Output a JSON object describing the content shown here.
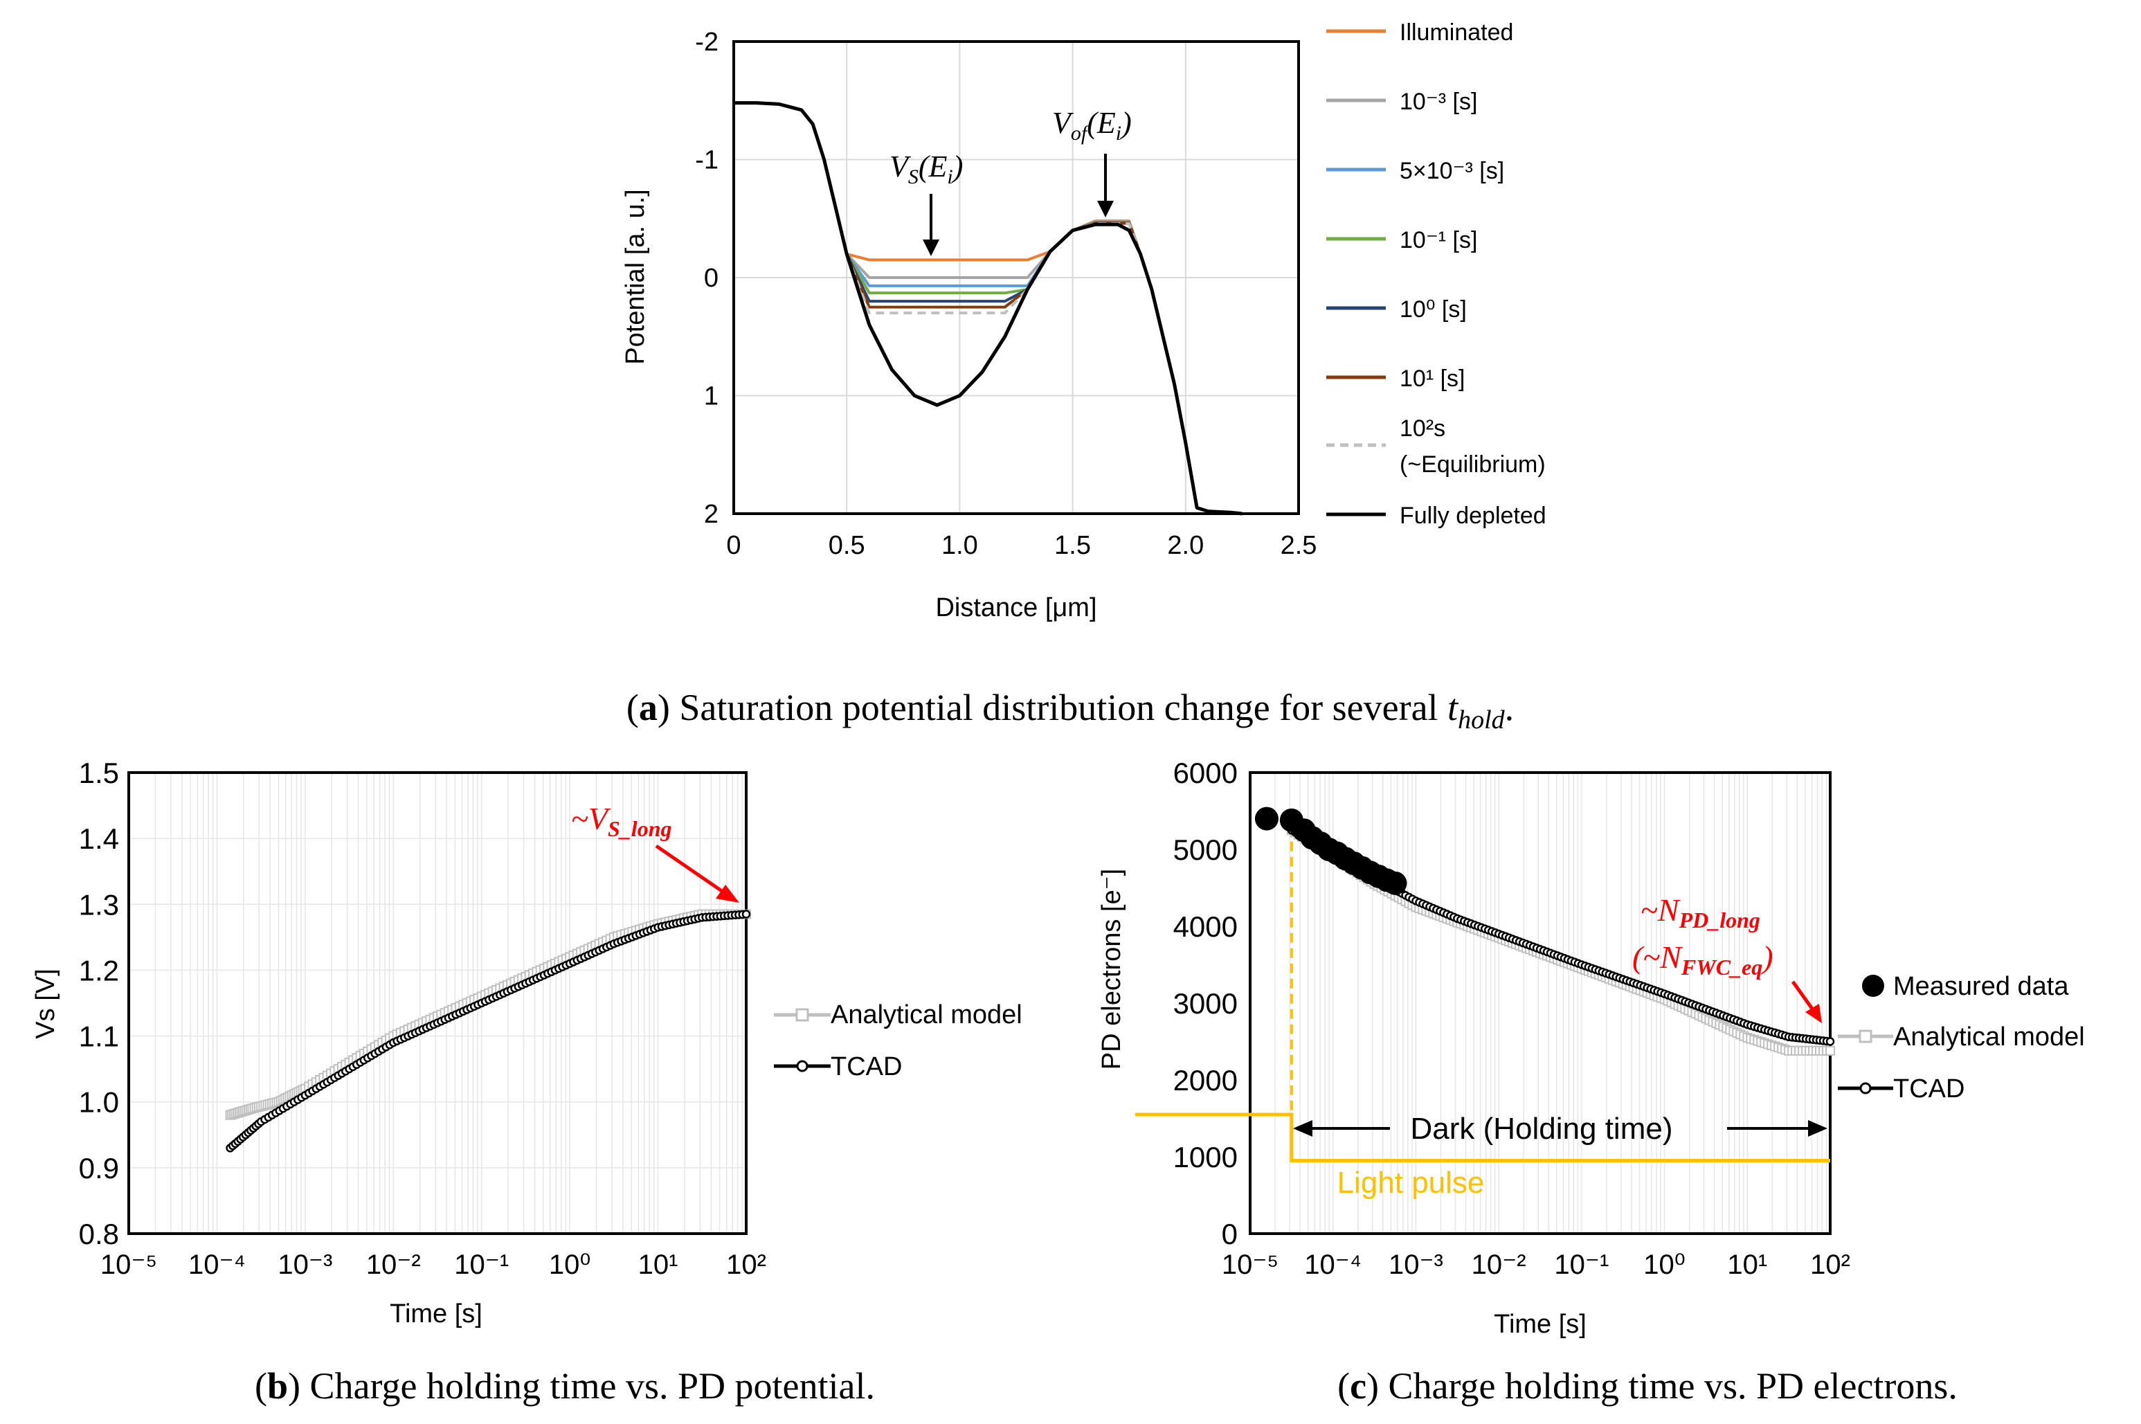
{
  "captions": {
    "a_label": "a",
    "a_text": "Saturation potential distribution change for several",
    "a_var": "t",
    "a_sub": "hold",
    "b_label": "b",
    "b_text": "Charge holding time vs. PD potential.",
    "c_label": "c",
    "c_text": "Charge holding time vs. PD electrons."
  },
  "chart_data": [
    {
      "id": "a",
      "type": "line",
      "xlabel": "Distance [μm]",
      "ylabel": "Potential [a. u.]",
      "xlim": [
        0,
        2.5
      ],
      "ylim": [
        2,
        -2
      ],
      "y_inverted": true,
      "xticks": [
        "0",
        "0.5",
        "1.0",
        "1.5",
        "2.0",
        "2.5"
      ],
      "yticks": [
        "-2",
        "-1",
        "0",
        "1",
        "2"
      ],
      "annotations": [
        {
          "text_main": "V",
          "text_sub": "S",
          "text_args": "(E",
          "text_argsub": "i",
          "text_close": ")",
          "x": 0.88,
          "y": 0.15
        },
        {
          "text_main": "V",
          "text_sub": "of",
          "text_args": "(E",
          "text_argsub": "i",
          "text_close": ")",
          "x": 1.65,
          "y": -0.52
        }
      ],
      "series": [
        {
          "name": "Illuminated",
          "color": "#ed7d31",
          "dash": false,
          "floor": -0.15
        },
        {
          "name": "10⁻³ [s]",
          "color": "#a5a5a5",
          "dash": false,
          "floor": 0.0
        },
        {
          "name": "5×10⁻³ [s]",
          "color": "#5b9bd5",
          "dash": false,
          "floor": 0.07
        },
        {
          "name": "10⁻¹ [s]",
          "color": "#70ad47",
          "dash": false,
          "floor": 0.13
        },
        {
          "name": "10⁰ [s]",
          "color": "#264478",
          "dash": false,
          "floor": 0.2
        },
        {
          "name": "10¹ [s]",
          "color": "#843c0c",
          "dash": false,
          "floor": 0.25
        },
        {
          "name": "10²s (~Equilibrium)",
          "color": "#bfbfbf",
          "dash": true,
          "floor": 0.3
        },
        {
          "name": "Fully depleted",
          "color": "#000000",
          "dash": false,
          "floor": null,
          "x": [
            0,
            0.1,
            0.2,
            0.3,
            0.35,
            0.4,
            0.5,
            0.6,
            0.7,
            0.8,
            0.9,
            1.0,
            1.1,
            1.2,
            1.3,
            1.4,
            1.5,
            1.6,
            1.7,
            1.75,
            1.8,
            1.85,
            1.9,
            1.95,
            2.0,
            2.05,
            2.1,
            2.2,
            2.25
          ],
          "y": [
            -1.48,
            -1.48,
            -1.47,
            -1.42,
            -1.3,
            -1.0,
            -0.2,
            0.4,
            0.78,
            1.0,
            1.08,
            1.0,
            0.8,
            0.5,
            0.1,
            -0.22,
            -0.4,
            -0.45,
            -0.45,
            -0.4,
            -0.2,
            0.1,
            0.5,
            0.9,
            1.4,
            1.95,
            1.98,
            1.99,
            2.0
          ]
        }
      ],
      "legend": [
        {
          "text": "Illuminated"
        },
        {
          "text": "10⁻³ [s]"
        },
        {
          "text": "5×10⁻³ [s]"
        },
        {
          "text": "10⁻¹ [s]"
        },
        {
          "text": "10⁰ [s]"
        },
        {
          "text": "10¹ [s]"
        },
        {
          "text": "10²s",
          "text2": "(~Equilibrium)"
        },
        {
          "text": "Fully depleted"
        }
      ]
    },
    {
      "id": "b",
      "type": "scatter",
      "xscale": "log",
      "xlabel": "Time [s]",
      "ylabel": "Vs [V]",
      "xlim": [
        1e-05,
        100
      ],
      "ylim": [
        0.8,
        1.5
      ],
      "xticks": [
        "10⁻⁵",
        "10⁻⁴",
        "10⁻³",
        "10⁻²",
        "10⁻¹",
        "10⁰",
        "10¹",
        "10²"
      ],
      "yticks": [
        "0.8",
        "0.9",
        "1.0",
        "1.1",
        "1.2",
        "1.3",
        "1.4",
        "1.5"
      ],
      "annotation": {
        "text_main": "~V",
        "text_sub": "S_long",
        "x": 100,
        "y": 1.285
      },
      "series": [
        {
          "name": "Analytical model",
          "color": "#bfbfbf",
          "logx": [
            -3.85,
            -3.6,
            -3.3,
            -3.0,
            -2.5,
            -2.0,
            -1.5,
            -1.0,
            -0.5,
            0.0,
            0.5,
            1.0,
            1.5,
            2.0
          ],
          "y": [
            0.98,
            0.99,
            1.0,
            1.02,
            1.06,
            1.1,
            1.13,
            1.16,
            1.19,
            1.22,
            1.25,
            1.27,
            1.285,
            1.285
          ]
        },
        {
          "name": "TCAD",
          "color": "#000000",
          "logx": [
            -3.85,
            -3.5,
            -3.0,
            -2.5,
            -2.0,
            -1.5,
            -1.0,
            -0.5,
            0.0,
            0.5,
            1.0,
            1.5,
            2.0
          ],
          "y": [
            0.93,
            0.97,
            1.01,
            1.05,
            1.09,
            1.12,
            1.15,
            1.18,
            1.21,
            1.24,
            1.265,
            1.28,
            1.285
          ]
        }
      ],
      "legend": [
        {
          "text": "Analytical model"
        },
        {
          "text": "TCAD"
        }
      ]
    },
    {
      "id": "c",
      "type": "scatter",
      "xscale": "log",
      "xlabel": "Time [s]",
      "ylabel": "PD electrons [e⁻]",
      "xlim": [
        1e-05,
        100
      ],
      "ylim": [
        0,
        6000
      ],
      "xticks": [
        "10⁻⁵",
        "10⁻⁴",
        "10⁻³",
        "10⁻²",
        "10⁻¹",
        "10⁰",
        "10¹",
        "10²"
      ],
      "yticks": [
        "0",
        "1000",
        "2000",
        "3000",
        "4000",
        "5000",
        "6000"
      ],
      "annotation": {
        "line1_main": "~N",
        "line1_sub": "PD_long",
        "line2_main": "(~N",
        "line2_sub": "FWC_eq",
        "line2_close": ")",
        "x": 100,
        "y": 2500
      },
      "light_pulse": {
        "label": "Light pulse",
        "color": "#ffc000",
        "high": 1550,
        "low": 950,
        "step_logx": -4.5
      },
      "dark_label": "Dark (Holding time)",
      "series": [
        {
          "name": "Measured data",
          "color": "#000000",
          "logx": [
            -4.8,
            -4.5,
            -4.35,
            -4.25,
            -4.15,
            -4.05,
            -3.95,
            -3.85,
            -3.75,
            -3.65,
            -3.55,
            -3.45,
            -3.35,
            -3.25
          ],
          "y": [
            5400,
            5380,
            5250,
            5150,
            5080,
            5000,
            4950,
            4880,
            4820,
            4760,
            4700,
            4650,
            4600,
            4560
          ]
        },
        {
          "name": "Analytical model",
          "color": "#bfbfbf",
          "logx": [
            -4.5,
            -4.0,
            -3.5,
            -3.0,
            -2.5,
            -2.0,
            -1.5,
            -1.0,
            -0.5,
            0.0,
            0.5,
            1.0,
            1.5,
            2.0
          ],
          "y": [
            5250,
            4900,
            4550,
            4250,
            4050,
            3850,
            3650,
            3450,
            3250,
            3050,
            2800,
            2550,
            2380,
            2380
          ]
        },
        {
          "name": "TCAD",
          "color": "#000000",
          "logx": [
            -4.5,
            -4.0,
            -3.5,
            -3.0,
            -2.5,
            -2.0,
            -1.5,
            -1.0,
            -0.5,
            0.0,
            0.5,
            1.0,
            1.5,
            2.0
          ],
          "y": [
            5250,
            4950,
            4620,
            4330,
            4100,
            3900,
            3700,
            3500,
            3310,
            3120,
            2920,
            2720,
            2560,
            2500
          ]
        }
      ],
      "legend": [
        {
          "text": "Measured data"
        },
        {
          "text": "Analytical model"
        },
        {
          "text": "TCAD"
        }
      ]
    }
  ]
}
